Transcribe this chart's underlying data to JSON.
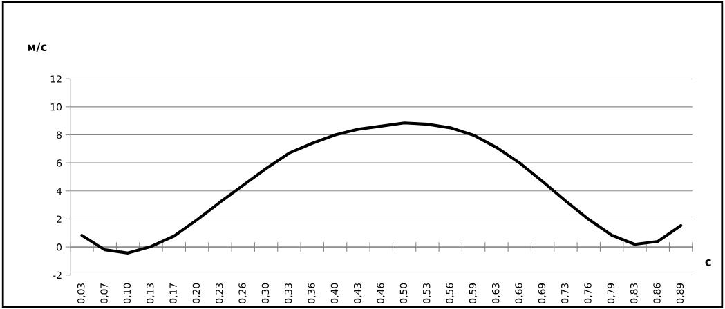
{
  "chart_data": {
    "type": "line",
    "xlabel": "с",
    "ylabel": "м/с",
    "categories": [
      "0,03",
      "0,07",
      "0,10",
      "0,13",
      "0,17",
      "0,20",
      "0,23",
      "0,26",
      "0,30",
      "0,33",
      "0,36",
      "0,40",
      "0,43",
      "0,46",
      "0,50",
      "0,53",
      "0,56",
      "0,59",
      "0,63",
      "0,66",
      "0,69",
      "0,73",
      "0,76",
      "0,79",
      "0,83",
      "0,86",
      "0,89"
    ],
    "series": [
      {
        "color": "#000000",
        "values": [
          0.83,
          -0.2,
          -0.43,
          0.03,
          0.78,
          1.94,
          3.2,
          4.4,
          5.6,
          6.7,
          7.4,
          8.0,
          8.4,
          8.62,
          8.85,
          8.76,
          8.5,
          7.98,
          7.1,
          6.0,
          4.67,
          3.28,
          1.97,
          0.84,
          0.19,
          0.4,
          1.53
        ]
      }
    ],
    "ylim": [
      -2,
      12
    ],
    "yticks": [
      -2,
      0,
      2,
      4,
      6,
      8,
      10,
      12
    ],
    "grid": "y",
    "legend": false,
    "marker": "none",
    "line_style": "solid"
  }
}
